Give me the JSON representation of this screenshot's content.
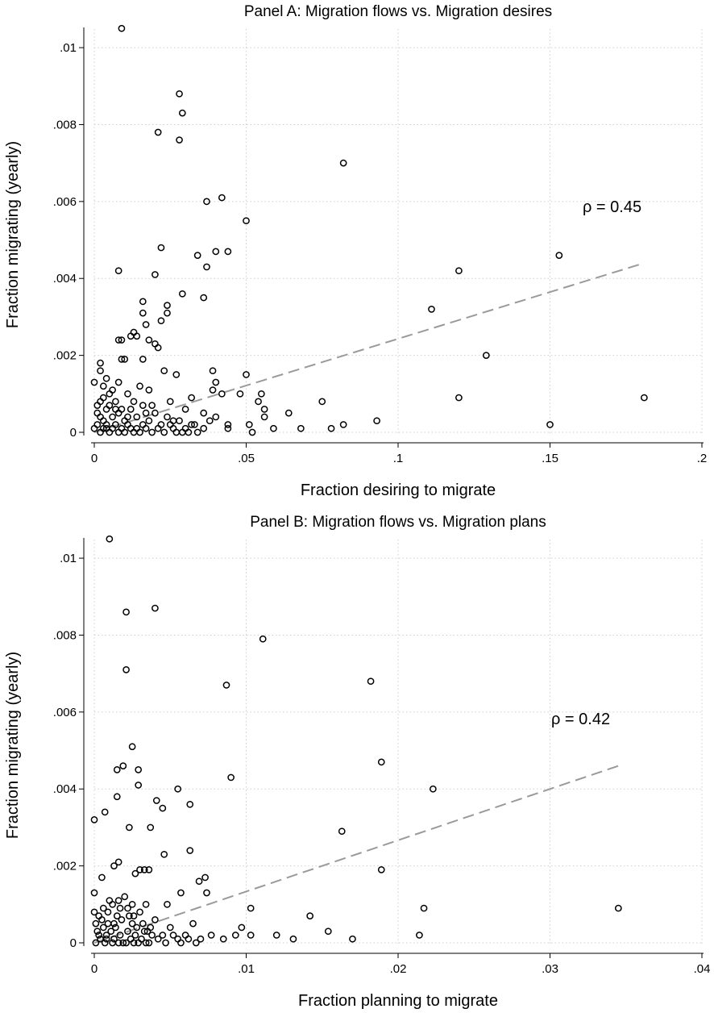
{
  "chart_data": [
    {
      "type": "scatter",
      "title": "Panel A: Migration flows vs. Migration desires",
      "xlabel": "Fraction desiring to migrate",
      "ylabel": "Fraction migrating (yearly)",
      "xlim": [
        0,
        0.2
      ],
      "ylim": [
        0,
        0.0104
      ],
      "xticks": [
        0,
        0.05,
        0.1,
        0.15,
        0.2
      ],
      "xtick_labels": [
        "0",
        ".05",
        ".1",
        ".15",
        ".2"
      ],
      "yticks": [
        0,
        0.002,
        0.004,
        0.006,
        0.008,
        0.01
      ],
      "ytick_labels": [
        "0",
        ".002",
        ".004",
        ".006",
        ".008",
        ".01"
      ],
      "grid": true,
      "annotation": "ρ = 0.45",
      "fit_line": {
        "x": [
          0,
          0.181
        ],
        "y": [
          0,
          0.0044
        ]
      },
      "points": [
        [
          0.009,
          0.0105
        ],
        [
          0.028,
          0.0088
        ],
        [
          0.029,
          0.0083
        ],
        [
          0.021,
          0.0078
        ],
        [
          0.028,
          0.0076
        ],
        [
          0.082,
          0.007
        ],
        [
          0.042,
          0.0061
        ],
        [
          0.037,
          0.006
        ],
        [
          0.05,
          0.0055
        ],
        [
          0.04,
          0.0047
        ],
        [
          0.044,
          0.0047
        ],
        [
          0.022,
          0.0048
        ],
        [
          0.034,
          0.0046
        ],
        [
          0.153,
          0.0046
        ],
        [
          0.037,
          0.0043
        ],
        [
          0.008,
          0.0042
        ],
        [
          0.02,
          0.0041
        ],
        [
          0.12,
          0.0042
        ],
        [
          0.029,
          0.0036
        ],
        [
          0.036,
          0.0035
        ],
        [
          0.016,
          0.0034
        ],
        [
          0.024,
          0.0033
        ],
        [
          0.024,
          0.0031
        ],
        [
          0.016,
          0.0031
        ],
        [
          0.111,
          0.0032
        ],
        [
          0.022,
          0.0029
        ],
        [
          0.017,
          0.0028
        ],
        [
          0.013,
          0.0026
        ],
        [
          0.012,
          0.0025
        ],
        [
          0.014,
          0.0025
        ],
        [
          0.008,
          0.0024
        ],
        [
          0.009,
          0.0024
        ],
        [
          0.018,
          0.0024
        ],
        [
          0.02,
          0.0023
        ],
        [
          0.021,
          0.0022
        ],
        [
          0.129,
          0.002
        ],
        [
          0.009,
          0.0019
        ],
        [
          0.01,
          0.0019
        ],
        [
          0.016,
          0.0019
        ],
        [
          0.002,
          0.0018
        ],
        [
          0.002,
          0.0016
        ],
        [
          0.039,
          0.0016
        ],
        [
          0.05,
          0.0015
        ],
        [
          0.027,
          0.0015
        ],
        [
          0.023,
          0.0016
        ],
        [
          0.004,
          0.0014
        ],
        [
          0.0,
          0.0013
        ],
        [
          0.008,
          0.0013
        ],
        [
          0.04,
          0.0013
        ],
        [
          0.039,
          0.0011
        ],
        [
          0.048,
          0.001
        ],
        [
          0.055,
          0.001
        ],
        [
          0.042,
          0.001
        ],
        [
          0.032,
          0.0009
        ],
        [
          0.054,
          0.0008
        ],
        [
          0.075,
          0.0008
        ],
        [
          0.12,
          0.0009
        ],
        [
          0.181,
          0.0009
        ],
        [
          0.056,
          0.0006
        ],
        [
          0.064,
          0.0005
        ],
        [
          0.056,
          0.0004
        ],
        [
          0.093,
          0.0003
        ],
        [
          0.15,
          0.0002
        ],
        [
          0.082,
          0.0002
        ],
        [
          0.078,
          0.0001
        ],
        [
          0.068,
          0.0001
        ],
        [
          0.059,
          0.0001
        ],
        [
          0.051,
          0.0002
        ],
        [
          0.052,
          0.0
        ],
        [
          0.044,
          0.0002
        ],
        [
          0.04,
          0.0004
        ],
        [
          0.036,
          0.0005
        ],
        [
          0.03,
          0.0006
        ],
        [
          0.025,
          0.0008
        ],
        [
          0.026,
          0.0003
        ],
        [
          0.033,
          0.0002
        ],
        [
          0.044,
          0.0001
        ],
        [
          0.018,
          0.0011
        ],
        [
          0.015,
          0.0012
        ],
        [
          0.011,
          0.001
        ],
        [
          0.006,
          0.0011
        ],
        [
          0.007,
          0.0008
        ],
        [
          0.003,
          0.0009
        ],
        [
          0.001,
          0.0005
        ],
        [
          0.003,
          0.0003
        ],
        [
          0.004,
          0.0006
        ],
        [
          0.006,
          0.0004
        ],
        [
          0.008,
          0.0005
        ],
        [
          0.01,
          0.0003
        ],
        [
          0.012,
          0.0006
        ],
        [
          0.014,
          0.0004
        ],
        [
          0.016,
          0.0007
        ],
        [
          0.018,
          0.0003
        ],
        [
          0.02,
          0.0005
        ],
        [
          0.022,
          0.0002
        ],
        [
          0.024,
          0.0004
        ],
        [
          0.026,
          0.0001
        ],
        [
          0.028,
          0.0003
        ],
        [
          0.03,
          0.0001
        ],
        [
          0.032,
          0.0002
        ],
        [
          0.034,
          0.0
        ],
        [
          0.036,
          0.0001
        ],
        [
          0.038,
          0.0003
        ],
        [
          0.0,
          0.0001
        ],
        [
          0.001,
          0.0002
        ],
        [
          0.002,
          0.0
        ],
        [
          0.003,
          0.0001
        ],
        [
          0.004,
          0.0002
        ],
        [
          0.005,
          0.0
        ],
        [
          0.006,
          0.0001
        ],
        [
          0.007,
          0.0002
        ],
        [
          0.008,
          0.0
        ],
        [
          0.009,
          0.0001
        ],
        [
          0.01,
          0.0
        ],
        [
          0.011,
          0.0002
        ],
        [
          0.012,
          0.0001
        ],
        [
          0.013,
          0.0
        ],
        [
          0.014,
          0.0001
        ],
        [
          0.015,
          0.0
        ],
        [
          0.016,
          0.0002
        ],
        [
          0.017,
          0.0001
        ],
        [
          0.019,
          0.0
        ],
        [
          0.021,
          0.0001
        ],
        [
          0.023,
          0.0
        ],
        [
          0.025,
          0.0002
        ],
        [
          0.027,
          0.0
        ],
        [
          0.029,
          0.0
        ],
        [
          0.031,
          0.0
        ],
        [
          0.001,
          0.0007
        ],
        [
          0.002,
          0.0004
        ],
        [
          0.005,
          0.0007
        ],
        [
          0.009,
          0.0006
        ],
        [
          0.013,
          0.0008
        ],
        [
          0.017,
          0.0005
        ],
        [
          0.019,
          0.0007
        ],
        [
          0.003,
          0.0012
        ],
        [
          0.005,
          0.001
        ],
        [
          0.007,
          0.0006
        ],
        [
          0.011,
          0.0004
        ],
        [
          0.004,
          0.0001
        ],
        [
          0.002,
          0.0008
        ]
      ]
    },
    {
      "type": "scatter",
      "title": "Panel B: Migration flows vs. Migration plans",
      "xlabel": "Fraction planning to migrate",
      "ylabel": "Fraction migrating (yearly)",
      "xlim": [
        0,
        0.04
      ],
      "ylim": [
        0,
        0.0104
      ],
      "xticks": [
        0,
        0.01,
        0.02,
        0.03,
        0.04
      ],
      "xtick_labels": [
        "0",
        ".01",
        ".02",
        ".03",
        ".04"
      ],
      "yticks": [
        0,
        0.002,
        0.004,
        0.006,
        0.008,
        0.01
      ],
      "ytick_labels": [
        "0",
        ".002",
        ".004",
        ".006",
        ".008",
        ".01"
      ],
      "grid": true,
      "annotation": "ρ = 0.42",
      "fit_line": {
        "x": [
          0,
          0.0345
        ],
        "y": [
          0,
          0.0046
        ]
      },
      "points": [
        [
          0.001,
          0.0105
        ],
        [
          0.004,
          0.0087
        ],
        [
          0.0021,
          0.0086
        ],
        [
          0.0111,
          0.0079
        ],
        [
          0.0021,
          0.0071
        ],
        [
          0.0182,
          0.0068
        ],
        [
          0.0087,
          0.0067
        ],
        [
          0.0025,
          0.0051
        ],
        [
          0.0189,
          0.0047
        ],
        [
          0.0019,
          0.0046
        ],
        [
          0.0015,
          0.0045
        ],
        [
          0.0029,
          0.0045
        ],
        [
          0.0055,
          0.004
        ],
        [
          0.0223,
          0.004
        ],
        [
          0.009,
          0.0043
        ],
        [
          0.0029,
          0.0041
        ],
        [
          0.0015,
          0.0038
        ],
        [
          0.0041,
          0.0037
        ],
        [
          0.0063,
          0.0036
        ],
        [
          0.0045,
          0.0035
        ],
        [
          0.0007,
          0.0034
        ],
        [
          0.0,
          0.0032
        ],
        [
          0.0023,
          0.003
        ],
        [
          0.0037,
          0.003
        ],
        [
          0.0163,
          0.0029
        ],
        [
          0.0046,
          0.0023
        ],
        [
          0.0063,
          0.0024
        ],
        [
          0.0013,
          0.002
        ],
        [
          0.0016,
          0.0021
        ],
        [
          0.0027,
          0.0018
        ],
        [
          0.003,
          0.0019
        ],
        [
          0.0033,
          0.0019
        ],
        [
          0.0036,
          0.0019
        ],
        [
          0.0189,
          0.0019
        ],
        [
          0.0005,
          0.0017
        ],
        [
          0.0073,
          0.0017
        ],
        [
          0.0069,
          0.0016
        ],
        [
          0.0074,
          0.0013
        ],
        [
          0.0057,
          0.0013
        ],
        [
          0.0,
          0.0013
        ],
        [
          0.0016,
          0.0011
        ],
        [
          0.0025,
          0.001
        ],
        [
          0.0034,
          0.001
        ],
        [
          0.0048,
          0.001
        ],
        [
          0.0103,
          0.0009
        ],
        [
          0.0217,
          0.0009
        ],
        [
          0.0345,
          0.0009
        ],
        [
          0.0142,
          0.0007
        ],
        [
          0.0097,
          0.0004
        ],
        [
          0.0154,
          0.0003
        ],
        [
          0.012,
          0.0002
        ],
        [
          0.0131,
          0.0001
        ],
        [
          0.017,
          0.0001
        ],
        [
          0.0214,
          0.0002
        ],
        [
          0.0103,
          0.0002
        ],
        [
          0.0093,
          0.0002
        ],
        [
          0.0085,
          0.0001
        ],
        [
          0.0077,
          0.0002
        ],
        [
          0.007,
          0.0001
        ],
        [
          0.0065,
          0.0005
        ],
        [
          0.006,
          0.0002
        ],
        [
          0.0055,
          0.0001
        ],
        [
          0.005,
          0.0004
        ],
        [
          0.0045,
          0.0002
        ],
        [
          0.004,
          0.0006
        ],
        [
          0.0035,
          0.0003
        ],
        [
          0.003,
          0.0008
        ],
        [
          0.0025,
          0.0005
        ],
        [
          0.002,
          0.0012
        ],
        [
          0.0015,
          0.0007
        ],
        [
          0.001,
          0.0011
        ],
        [
          0.0005,
          0.0006
        ],
        [
          0.0,
          0.0008
        ],
        [
          0.0002,
          0.0003
        ],
        [
          0.0004,
          0.0001
        ],
        [
          0.0006,
          0.0004
        ],
        [
          0.0008,
          0.0002
        ],
        [
          0.0011,
          0.0003
        ],
        [
          0.0013,
          0.0001
        ],
        [
          0.0017,
          0.0002
        ],
        [
          0.0019,
          0.0
        ],
        [
          0.0022,
          0.0003
        ],
        [
          0.0024,
          0.0001
        ],
        [
          0.0027,
          0.0002
        ],
        [
          0.0029,
          0.0
        ],
        [
          0.0031,
          0.0001
        ],
        [
          0.0033,
          0.0003
        ],
        [
          0.0036,
          0.0
        ],
        [
          0.0038,
          0.0002
        ],
        [
          0.0042,
          0.0001
        ],
        [
          0.0047,
          0.0
        ],
        [
          0.0052,
          0.0002
        ],
        [
          0.0057,
          0.0
        ],
        [
          0.0062,
          0.0001
        ],
        [
          0.0067,
          0.0
        ],
        [
          0.0001,
          0.0
        ],
        [
          0.0003,
          0.0002
        ],
        [
          0.0007,
          0.0
        ],
        [
          0.0009,
          0.0005
        ],
        [
          0.0012,
          0.0
        ],
        [
          0.0014,
          0.0004
        ],
        [
          0.0016,
          0.0
        ],
        [
          0.0018,
          0.0006
        ],
        [
          0.0021,
          0.0
        ],
        [
          0.0023,
          0.0007
        ],
        [
          0.0026,
          0.0
        ],
        [
          0.0028,
          0.0004
        ],
        [
          0.0032,
          0.0005
        ],
        [
          0.0034,
          0.0
        ],
        [
          0.0037,
          0.0004
        ],
        [
          0.0001,
          0.0005
        ],
        [
          0.0003,
          0.0007
        ],
        [
          0.0006,
          0.0009
        ],
        [
          0.0009,
          0.0008
        ],
        [
          0.0012,
          0.001
        ],
        [
          0.0017,
          0.0009
        ],
        [
          0.0022,
          0.0009
        ],
        [
          0.0026,
          0.0007
        ],
        [
          0.0008,
          0.0001
        ],
        [
          0.0013,
          0.0005
        ]
      ]
    }
  ]
}
